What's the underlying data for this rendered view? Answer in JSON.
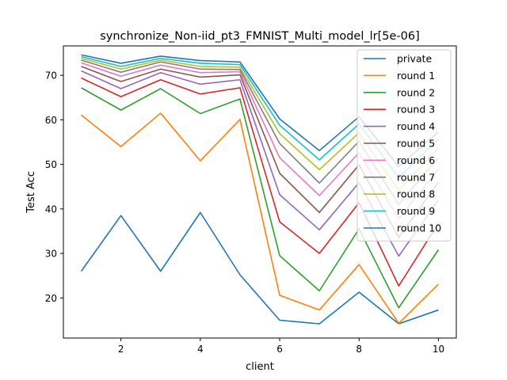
{
  "chart_data": {
    "type": "line",
    "title": "synchronize_Non-iid_pt3_FMNIST_Multi_model_lr[5e-06]",
    "xlabel": "client",
    "ylabel": "Test Acc",
    "x": [
      1,
      2,
      3,
      4,
      5,
      6,
      7,
      8,
      9,
      10
    ],
    "xlim": [
      0.55,
      10.45
    ],
    "ylim": [
      11.0,
      76.6
    ],
    "xticks": [
      2,
      4,
      6,
      8,
      10
    ],
    "yticks": [
      20,
      30,
      40,
      50,
      60,
      70
    ],
    "grid": false,
    "legend_position": "top-right",
    "series": [
      {
        "name": "private",
        "color": "#1f77b4",
        "values": [
          26.0,
          38.5,
          26.0,
          39.2,
          25.2,
          15.0,
          14.2,
          21.3,
          14.2,
          17.3
        ]
      },
      {
        "name": "round 1",
        "color": "#ff7f0e",
        "values": [
          61.1,
          54.0,
          61.5,
          50.8,
          60.1,
          20.6,
          17.3,
          27.5,
          14.3,
          23.1
        ]
      },
      {
        "name": "round 2",
        "color": "#2ca02c",
        "values": [
          67.2,
          62.2,
          67.0,
          61.4,
          64.7,
          29.5,
          21.6,
          35.5,
          17.8,
          30.8
        ]
      },
      {
        "name": "round 3",
        "color": "#d62728",
        "values": [
          69.4,
          65.2,
          69.0,
          65.8,
          67.2,
          37.1,
          30.0,
          41.4,
          22.7,
          36.8
        ]
      },
      {
        "name": "round 4",
        "color": "#9467bd",
        "values": [
          71.0,
          67.0,
          70.6,
          68.0,
          69.0,
          43.2,
          35.3,
          45.9,
          29.4,
          42.0
        ]
      },
      {
        "name": "round 5",
        "color": "#8c564b",
        "values": [
          72.0,
          68.6,
          71.4,
          69.6,
          70.1,
          48.0,
          39.2,
          49.9,
          33.6,
          46.0
        ]
      },
      {
        "name": "round 6",
        "color": "#e377c2",
        "values": [
          72.8,
          69.8,
          72.3,
          70.6,
          70.8,
          51.5,
          43.0,
          52.6,
          37.8,
          48.9
        ]
      },
      {
        "name": "round 7",
        "color": "#7f7f7f",
        "values": [
          73.4,
          70.7,
          73.0,
          71.4,
          71.3,
          54.7,
          45.8,
          55.2,
          41.0,
          51.5
        ]
      },
      {
        "name": "round 8",
        "color": "#bcbd22",
        "values": [
          73.8,
          71.4,
          73.4,
          72.0,
          71.8,
          56.9,
          48.8,
          57.1,
          44.2,
          53.7
        ]
      },
      {
        "name": "round 9",
        "color": "#17becf",
        "values": [
          74.2,
          72.0,
          73.8,
          72.7,
          72.4,
          58.8,
          51.0,
          59.1,
          47.0,
          55.7
        ]
      },
      {
        "name": "round 10",
        "color": "#1f77b4",
        "values": [
          74.6,
          72.7,
          74.3,
          73.3,
          73.0,
          60.2,
          53.1,
          60.7,
          49.5,
          57.3
        ]
      }
    ]
  }
}
